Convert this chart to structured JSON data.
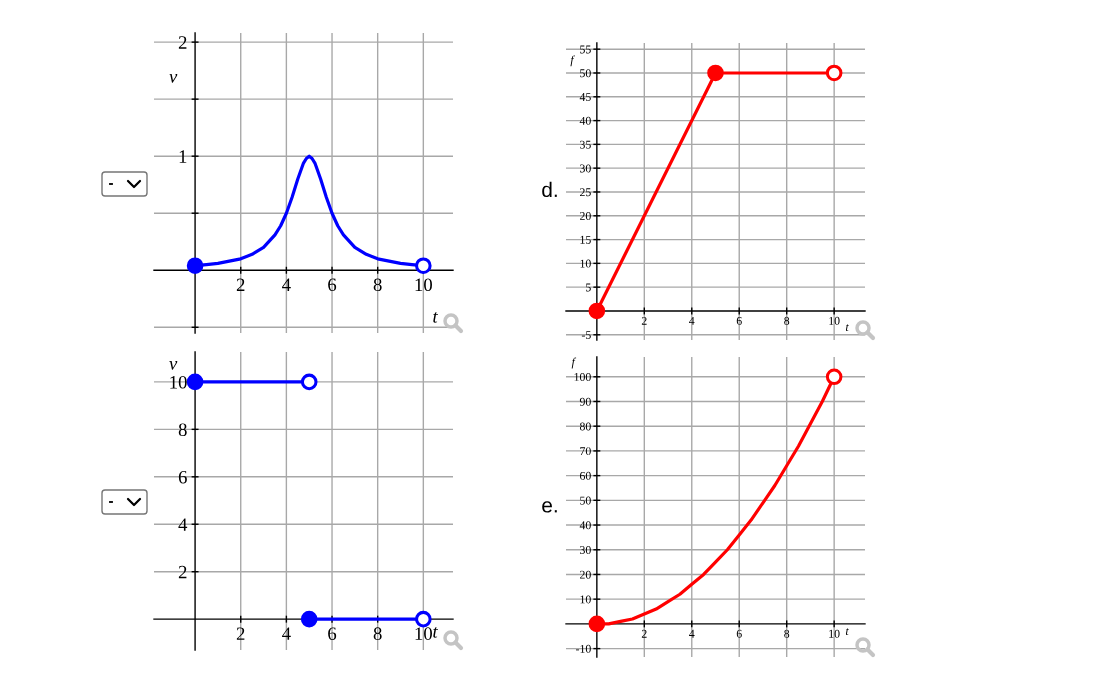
{
  "chart_data": [
    {
      "type": "line",
      "xlabel": "t",
      "ylabel": "v",
      "annotations": [
        "-"
      ],
      "xlim": [
        -1.8,
        11.3
      ],
      "xticks": [
        2,
        4,
        6,
        8,
        10
      ],
      "ylim": [
        -0.55,
        2.08
      ],
      "yticks": [
        {
          "value": -0.5,
          "label": null
        },
        {
          "value": 0.5,
          "label": null
        },
        1,
        {
          "value": 1.5,
          "label": null
        },
        2
      ],
      "grid": true,
      "series": [
        {
          "type": "line",
          "color": "#0000ff",
          "x": [
            0,
            0.5,
            1,
            1.5,
            2,
            2.5,
            3,
            3.5,
            3.75,
            4,
            4.25,
            4.5,
            4.75,
            4.875,
            5,
            5.125,
            5.25,
            5.5,
            5.75,
            6,
            6.25,
            6.5,
            7,
            7.5,
            8,
            8.5,
            9,
            9.5,
            10
          ],
          "values": [
            0.04,
            0.05,
            0.06,
            0.08,
            0.1,
            0.14,
            0.2,
            0.31,
            0.39,
            0.5,
            0.64,
            0.8,
            0.94,
            0.98,
            1,
            0.98,
            0.94,
            0.8,
            0.64,
            0.5,
            0.39,
            0.31,
            0.2,
            0.14,
            0.1,
            0.08,
            0.06,
            0.05,
            0.04
          ]
        },
        {
          "type": "scatter",
          "marker": "circle",
          "color": "#0000ff",
          "colors": [
            "#0000ff",
            "#ffffff"
          ],
          "x": [
            0,
            10
          ],
          "values": [
            0.04,
            0.04
          ]
        }
      ]
    },
    {
      "type": "line",
      "title": "d.",
      "xlabel": "t",
      "ylabel": "f",
      "xlim": [
        -1.3,
        11.3
      ],
      "xticks": [
        2,
        4,
        6,
        8,
        10
      ],
      "ylim": [
        -6.1,
        56.3
      ],
      "yticks": [
        -5,
        5,
        10,
        15,
        20,
        25,
        30,
        35,
        40,
        45,
        50,
        55
      ],
      "grid": true,
      "series": [
        {
          "type": "line",
          "color": "#ff0000",
          "x": [
            0,
            5,
            10
          ],
          "values": [
            0,
            50,
            50
          ]
        },
        {
          "type": "scatter",
          "marker": "circle",
          "color": "#ff0000",
          "colors": [
            "#ff0000",
            "#ff0000",
            "#ffffff"
          ],
          "x": [
            0,
            5,
            10
          ],
          "values": [
            0,
            50,
            50
          ]
        }
      ]
    },
    {
      "type": "line",
      "xlabel": "t",
      "ylabel": "v",
      "annotations": [
        "-"
      ],
      "xlim": [
        -1.8,
        11.3
      ],
      "xticks": [
        2,
        4,
        6,
        8,
        10
      ],
      "ylim": [
        -1.3,
        11.26
      ],
      "yticks": [
        2,
        4,
        6,
        8,
        10
      ],
      "grid": true,
      "series": [
        {
          "type": "line",
          "color": "#0000ff",
          "x": [
            0,
            5
          ],
          "values": [
            10,
            10
          ]
        },
        {
          "type": "line",
          "color": "#0000ff",
          "x": [
            5,
            10
          ],
          "values": [
            0,
            0
          ]
        },
        {
          "type": "scatter",
          "marker": "circle",
          "color": "#0000ff",
          "colors": [
            "#0000ff",
            "#ffffff",
            "#0000ff",
            "#ffffff"
          ],
          "x": [
            0,
            5,
            5,
            10
          ],
          "values": [
            10,
            10,
            0,
            0
          ]
        }
      ]
    },
    {
      "type": "line",
      "title": "e.",
      "xlabel": "t",
      "ylabel": "f",
      "xlim": [
        -1.3,
        11.3
      ],
      "xticks": [
        2,
        4,
        6,
        8,
        10
      ],
      "ylim": [
        -13.4,
        108
      ],
      "yticks": [
        -10,
        10,
        20,
        30,
        40,
        50,
        60,
        70,
        80,
        90,
        100
      ],
      "grid": true,
      "series": [
        {
          "type": "line",
          "color": "#ff0000",
          "x": [
            0,
            0.5,
            1,
            1.5,
            2,
            2.5,
            3,
            3.5,
            4,
            4.5,
            5,
            5.5,
            6,
            6.5,
            7,
            7.5,
            8,
            8.5,
            9,
            9.5,
            10
          ],
          "values": [
            0,
            0,
            1,
            2,
            4,
            6,
            9,
            12,
            16,
            20,
            25,
            30,
            36,
            42,
            49,
            56,
            64,
            72,
            81,
            90,
            100
          ]
        },
        {
          "type": "scatter",
          "marker": "circle",
          "color": "#ff0000",
          "colors": [
            "#ff0000",
            "#ffffff"
          ],
          "x": [
            0,
            10
          ],
          "values": [
            0,
            100
          ]
        }
      ]
    }
  ]
}
